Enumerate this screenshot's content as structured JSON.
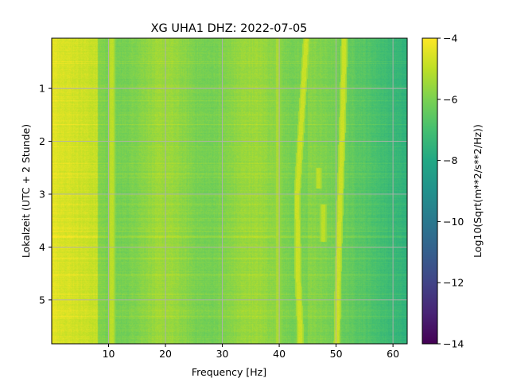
{
  "chart_data": {
    "type": "heatmap",
    "title": "XG UHA1  DHZ: 2022-07-05",
    "xlabel": "Frequency [Hz]",
    "ylabel": "Lokalzeit (UTC + 2 Stunde)",
    "xlim": [
      0.0,
      62.5
    ],
    "ylim": [
      5.83,
      0.05
    ],
    "xticks": [
      10,
      20,
      30,
      40,
      50,
      60
    ],
    "yticks": [
      1,
      2,
      3,
      4,
      5
    ],
    "grid": true,
    "colorbar": {
      "label": "Log10(Sqrt(m**2/s**2/Hz))",
      "range": [
        -14,
        -4
      ],
      "ticks": [
        -4,
        -6,
        -8,
        -10,
        -12,
        -14
      ],
      "tick_labels": [
        "−4",
        "−6",
        "−8",
        "−10",
        "−12",
        "−14"
      ],
      "colormap": "viridis"
    },
    "features": [
      {
        "type": "spectral-line",
        "x": 10.5,
        "value": -5.0
      },
      {
        "type": "spectral-line",
        "x": 39.8,
        "value": -5.3
      },
      {
        "type": "spectral-line-drifting",
        "x": [
          44.8,
          44.0,
          43.2,
          43.3,
          43.7
        ],
        "y": [
          0.05,
          1.5,
          3.0,
          4.5,
          5.5
        ],
        "value": -4.8
      },
      {
        "type": "spectral-line-drifting",
        "x": [
          51.5,
          51.2,
          50.8,
          50.4,
          50.2
        ],
        "y": [
          0.05,
          1.5,
          3.0,
          4.5,
          5.83
        ],
        "value": -4.8
      },
      {
        "type": "spectral-line-segment",
        "x": 47.8,
        "y": [
          3.2,
          3.9
        ],
        "value": -5.0
      },
      {
        "type": "spectral-line-segment",
        "x": 47.0,
        "y": [
          2.5,
          2.9
        ],
        "value": -5.0
      }
    ],
    "background": {
      "low_freq_value": -4.9,
      "mid_freq_value": -5.8,
      "high_freq_value": -7.6,
      "rolloff_start_hz": 45
    }
  }
}
